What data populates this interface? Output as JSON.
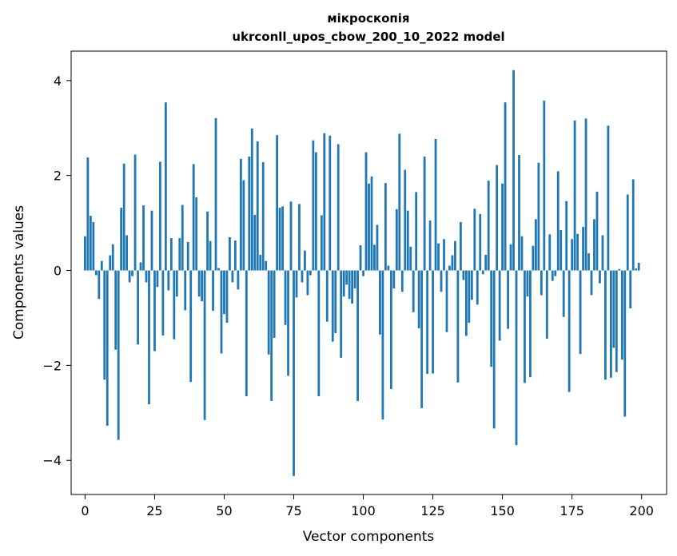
{
  "chart_data": {
    "type": "bar",
    "title": "мікроскопія",
    "subtitle": "ukrconll_upos_cbow_200_10_2022 model",
    "xlabel": "Vector components",
    "ylabel": "Components values",
    "xlim": [
      -5,
      209
    ],
    "ylim": [
      -4.72,
      4.62
    ],
    "xticks": [
      0,
      25,
      50,
      75,
      100,
      125,
      150,
      175,
      200
    ],
    "yticks": [
      -4,
      -2,
      0,
      2,
      4
    ],
    "ytick_labels": [
      "−4",
      "−2",
      "0",
      "2",
      "4"
    ],
    "grid": false,
    "bar_color": "#1f77b4",
    "x": [
      0,
      1,
      2,
      3,
      4,
      5,
      6,
      7,
      8,
      9,
      10,
      11,
      12,
      13,
      14,
      15,
      16,
      17,
      18,
      19,
      20,
      21,
      22,
      23,
      24,
      25,
      26,
      27,
      28,
      29,
      30,
      31,
      32,
      33,
      34,
      35,
      36,
      37,
      38,
      39,
      40,
      41,
      42,
      43,
      44,
      45,
      46,
      47,
      48,
      49,
      50,
      51,
      52,
      53,
      54,
      55,
      56,
      57,
      58,
      59,
      60,
      61,
      62,
      63,
      64,
      65,
      66,
      67,
      68,
      69,
      70,
      71,
      72,
      73,
      74,
      75,
      76,
      77,
      78,
      79,
      80,
      81,
      82,
      83,
      84,
      85,
      86,
      87,
      88,
      89,
      90,
      91,
      92,
      93,
      94,
      95,
      96,
      97,
      98,
      99,
      100,
      101,
      102,
      103,
      104,
      105,
      106,
      107,
      108,
      109,
      110,
      111,
      112,
      113,
      114,
      115,
      116,
      117,
      118,
      119,
      120,
      121,
      122,
      123,
      124,
      125,
      126,
      127,
      128,
      129,
      130,
      131,
      132,
      133,
      134,
      135,
      136,
      137,
      138,
      139,
      140,
      141,
      142,
      143,
      144,
      145,
      146,
      147,
      148,
      149,
      150,
      151,
      152,
      153,
      154,
      155,
      156,
      157,
      158,
      159,
      160,
      161,
      162,
      163,
      164,
      165,
      166,
      167,
      168,
      169,
      170,
      171,
      172,
      173,
      174,
      175,
      176,
      177,
      178,
      179,
      180,
      181,
      182,
      183,
      184,
      185,
      186,
      187,
      188,
      189,
      190,
      191,
      192,
      193,
      194,
      195,
      196,
      197,
      198,
      199
    ],
    "values": [
      0.72,
      2.38,
      1.15,
      1.02,
      -0.1,
      -0.6,
      0.2,
      -2.3,
      -3.27,
      0.32,
      0.55,
      -1.67,
      -3.57,
      1.32,
      2.25,
      0.74,
      -0.25,
      -0.12,
      2.44,
      -1.56,
      0.17,
      1.37,
      -0.25,
      -2.82,
      1.26,
      -1.7,
      -0.35,
      2.29,
      -1.37,
      3.54,
      -0.42,
      0.68,
      -1.45,
      -0.55,
      0.68,
      1.38,
      -0.84,
      0.6,
      -2.35,
      2.24,
      1.54,
      -0.55,
      -0.65,
      -3.15,
      1.24,
      0.62,
      -0.85,
      3.21,
      0.05,
      -1.75,
      -0.92,
      -1.1,
      0.7,
      -0.25,
      0.63,
      -0.4,
      2.35,
      1.9,
      -2.65,
      2.4,
      2.99,
      1.17,
      2.72,
      0.33,
      2.28,
      0.2,
      -1.77,
      -2.75,
      -1.42,
      2.85,
      1.32,
      1.35,
      -1.15,
      -2.22,
      1.45,
      -4.33,
      -0.57,
      1.4,
      -0.25,
      0.42,
      -0.52,
      -0.1,
      2.74,
      2.49,
      -2.65,
      1.16,
      2.89,
      -1.08,
      2.84,
      -1.5,
      -1.32,
      2.66,
      -1.84,
      -0.55,
      -0.3,
      -0.6,
      -0.7,
      -0.38,
      -2.75,
      0.53,
      -0.12,
      2.49,
      1.83,
      1.98,
      0.54,
      0.96,
      -1.35,
      -3.14,
      1.84,
      0.1,
      -2.5,
      -0.38,
      1.29,
      2.88,
      -0.45,
      2.12,
      1.26,
      0.5,
      -0.88,
      1.65,
      -1.22,
      -2.9,
      2.4,
      -2.18,
      1.05,
      -2.17,
      2.77,
      0.57,
      -0.45,
      0.66,
      -1.3,
      0.1,
      0.32,
      0.62,
      -2.36,
      1.02,
      -0.2,
      -1.38,
      -1.1,
      -0.62,
      1.3,
      -0.72,
      1.19,
      -0.08,
      0.33,
      1.89,
      -2.03,
      -3.33,
      2.22,
      -1.48,
      1.83,
      3.54,
      -1.23,
      0.55,
      4.22,
      -3.68,
      2.43,
      0.72,
      -2.37,
      -0.55,
      -2.25,
      0.52,
      1.08,
      2.27,
      -0.52,
      3.58,
      -1.44,
      0.76,
      -0.22,
      -0.12,
      2.09,
      0.85,
      -0.98,
      1.46,
      -2.56,
      0.66,
      3.16,
      0.77,
      -1.76,
      0.92,
      3.2,
      0.36,
      -0.52,
      1.08,
      1.66,
      -0.27,
      0.74,
      -2.3,
      3.05,
      -2.26,
      -1.63,
      -2.14,
      0.03,
      -1.88,
      -3.08,
      1.6,
      -0.8,
      1.92,
      0.04,
      0.16
    ]
  }
}
